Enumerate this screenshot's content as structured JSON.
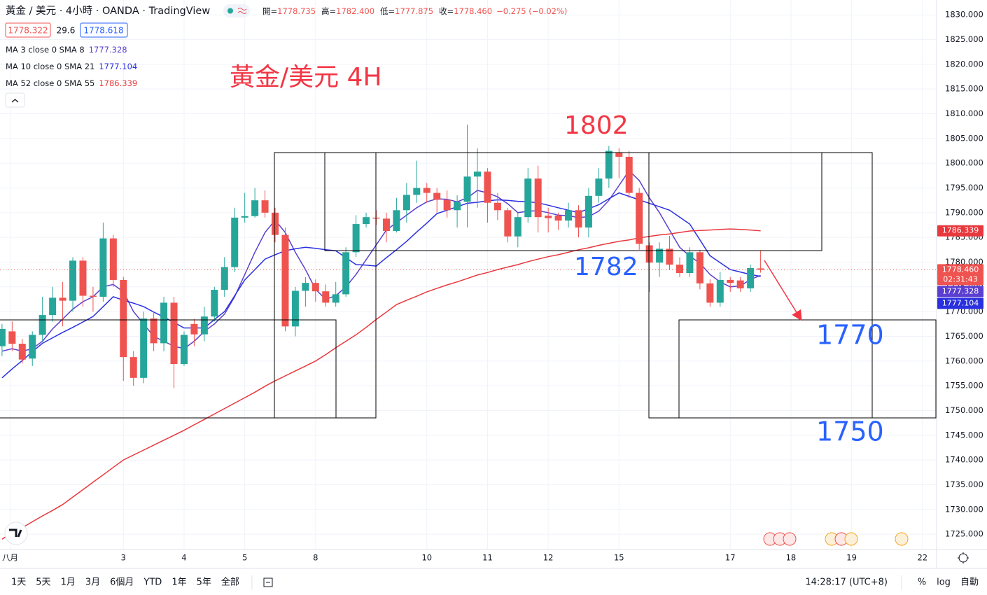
{
  "header": {
    "symbol_line": "黃金 / 美元 · 4小時 · OANDA · TradingView",
    "ohlc": [
      {
        "label": "開=",
        "value": "1778.735"
      },
      {
        "label": "高=",
        "value": "1782.400"
      },
      {
        "label": "低=",
        "value": "1777.875"
      },
      {
        "label": "收=",
        "value": "1778.460"
      }
    ],
    "change": "−0.275 (−0.02%)",
    "bid": "1778.322",
    "spread": "29.6",
    "ask": "1778.618"
  },
  "chart_data": {
    "type": "candlestick",
    "annotations": [
      "黃金/美元 4H",
      "1802",
      "1782",
      "1770",
      "1750"
    ],
    "candles": {
      "open": [
        1763,
        1766,
        1763.5,
        1760.5,
        1765.3,
        1769.3,
        1772.8,
        1772.2,
        1780.3,
        1773.2,
        1773,
        1784.8,
        1776.4,
        1760.8,
        1756.6,
        1768.6,
        1763.6,
        1771.8,
        1759.4,
        1767.5,
        1765.4,
        1769,
        1774.4,
        1779,
        1789,
        1789.3,
        1792.5,
        1790,
        1785.5,
        1767,
        1774.2,
        1775.8,
        1774.1,
        1771.8,
        1773.5,
        1782,
        1787.7,
        1789,
        1788.8,
        1786.3,
        1790.5,
        1793.6,
        1795,
        1794,
        1792.6,
        1790.5,
        1792.2,
        1797.3,
        1798.3,
        1792,
        1790.5,
        1785.2,
        1789.1,
        1796.9,
        1789.4,
        1789.4,
        1788.4,
        1790.5,
        1787,
        1793.4,
        1796.9,
        1802.2,
        1801.3,
        1794,
        1783.4,
        1779.9,
        1782.7,
        1779.5,
        1777.8,
        1782,
        1775.7,
        1771.8,
        1776.4,
        1776.3,
        1774.7,
        1778.735
      ],
      "high": [
        1767.5,
        1768,
        1764.5,
        1766,
        1773,
        1775,
        1776,
        1781,
        1781,
        1775,
        1788,
        1785.5,
        1777,
        1762,
        1770,
        1770,
        1773,
        1773,
        1766,
        1768.5,
        1771,
        1775,
        1781,
        1791,
        1794,
        1795,
        1794.5,
        1791,
        1787,
        1775,
        1777,
        1776.5,
        1775.5,
        1776,
        1783,
        1789.5,
        1790,
        1790.5,
        1790,
        1793,
        1796,
        1800.5,
        1796,
        1795,
        1794.5,
        1793.5,
        1807.8,
        1803,
        1799,
        1794,
        1791,
        1790,
        1799,
        1799.5,
        1791,
        1790,
        1792,
        1791.5,
        1795,
        1799,
        1803.5,
        1803,
        1802.5,
        1795,
        1784,
        1784,
        1785.3,
        1781,
        1783,
        1782.5,
        1776.5,
        1778,
        1777,
        1777,
        1779.5,
        1782.4
      ],
      "low": [
        1761,
        1762,
        1759.5,
        1759,
        1764,
        1768,
        1767,
        1770,
        1771,
        1770,
        1772,
        1775,
        1756,
        1755,
        1755.5,
        1762,
        1762,
        1754.5,
        1759,
        1763,
        1764,
        1768,
        1773,
        1778,
        1788,
        1789,
        1789,
        1784,
        1766,
        1765,
        1771,
        1772,
        1771,
        1771,
        1773,
        1781,
        1787,
        1787.5,
        1784,
        1786,
        1788,
        1792,
        1792,
        1790,
        1789,
        1787,
        1787,
        1791,
        1788,
        1788.5,
        1784,
        1783,
        1788,
        1786,
        1786,
        1786.5,
        1787,
        1785,
        1785,
        1792,
        1795,
        1797,
        1793,
        1782.5,
        1774,
        1777,
        1778.5,
        1777,
        1777,
        1774.5,
        1771,
        1771,
        1774,
        1774,
        1774,
        1777.875
      ],
      "close": [
        1766.5,
        1763.5,
        1760.3,
        1765.3,
        1769.3,
        1772.8,
        1772.2,
        1780.3,
        1773.2,
        1773,
        1784.8,
        1776.4,
        1760.8,
        1756.6,
        1768.6,
        1763.6,
        1771.8,
        1759.4,
        1765.3,
        1765.4,
        1769,
        1774.4,
        1779,
        1789,
        1789.3,
        1792.5,
        1790,
        1785.5,
        1767,
        1774.2,
        1775.8,
        1774.1,
        1771.8,
        1773.5,
        1782,
        1787.7,
        1789.1,
        1788.8,
        1786.3,
        1790.5,
        1793.6,
        1795,
        1794,
        1792.6,
        1790.5,
        1792.2,
        1797.3,
        1798.3,
        1792,
        1790.5,
        1785.2,
        1789.1,
        1796.9,
        1789.1,
        1788.9,
        1788.4,
        1790.5,
        1787,
        1793.4,
        1796.9,
        1802.5,
        1801.3,
        1794,
        1783.7,
        1779.9,
        1782.7,
        1779.5,
        1777.8,
        1782,
        1775.7,
        1771.8,
        1776.4,
        1775.8,
        1774.7,
        1778.8,
        1778.46
      ],
      "up_color": "#26a69a",
      "down_color": "#ef5350",
      "last_label": "1778.460",
      "countdown": "02:31:43"
    },
    "ma_lines": [
      {
        "name": "MA 3 close 0 SMA 8",
        "value_label": "1777.328",
        "color": "#5b3fd0",
        "values": [
          1762,
          1762.5,
          1762,
          1762.5,
          1764,
          1766.5,
          1768.5,
          1770.5,
          1772,
          1773,
          1775,
          1775.5,
          1774,
          1770,
          1767.5,
          1765,
          1764,
          1763,
          1762.5,
          1764,
          1766,
          1767.5,
          1769.5,
          1773,
          1777.5,
          1782,
          1786,
          1788.5,
          1786,
          1782,
          1778.5,
          1774.5,
          1772.5,
          1773.2,
          1775,
          1777.5,
          1780.5,
          1783.5,
          1786.5,
          1788,
          1789.5,
          1791,
          1792.2,
          1792.8,
          1792.7,
          1792.2,
          1793,
          1794.5,
          1794,
          1793.2,
          1791.8,
          1790,
          1790.3,
          1790.4,
          1790,
          1789.5,
          1789.4,
          1789,
          1789.2,
          1790.3,
          1792.5,
          1795.5,
          1798.5,
          1796.5,
          1793,
          1790,
          1786.5,
          1783,
          1781.2,
          1779.8,
          1777.5,
          1776,
          1775,
          1775.2,
          1776.5,
          1777.328
        ]
      },
      {
        "name": "MA 10 close 0 SMA 21",
        "value_label": "1777.104",
        "color": "#2a30e0",
        "values": [
          1756.6,
          1758.4,
          1760.1,
          1761.9,
          1763.6,
          1764.7,
          1765.8,
          1766.8,
          1767.9,
          1769.0,
          1771.0,
          1773.0,
          1772.3,
          1771.7,
          1771.0,
          1769.9,
          1768.9,
          1767.8,
          1766.7,
          1766.7,
          1766.7,
          1768.4,
          1770.0,
          1773.2,
          1776.4,
          1778.5,
          1780.6,
          1781.5,
          1782.3,
          1782.7,
          1783.0,
          1782.8,
          1782.5,
          1782.3,
          1780.9,
          1779.5,
          1779.4,
          1779.2,
          1780.9,
          1782.5,
          1784.2,
          1786.1,
          1787.9,
          1789.8,
          1790.5,
          1791.2,
          1791.9,
          1792.1,
          1792.4,
          1792.6,
          1792.5,
          1792.3,
          1792.2,
          1792.0,
          1791.5,
          1791.0,
          1790.5,
          1790.0,
          1790.8,
          1791.6,
          1792.8,
          1794.0,
          1793.3,
          1792.6,
          1791.9,
          1791.2,
          1790.5,
          1789.1,
          1787.7,
          1784.5,
          1781.3,
          1779.9,
          1778.5,
          1778.0,
          1777.5,
          1777.104
        ]
      },
      {
        "name": "MA 52 close 0 SMA 55",
        "value_label": "1786.339",
        "color": "#e8383d",
        "values": [
          1724.0,
          1725.2,
          1726.3,
          1727.5,
          1728.7,
          1729.8,
          1731.0,
          1732.5,
          1734.0,
          1735.5,
          1737.0,
          1738.5,
          1740.0,
          1741.0,
          1742.0,
          1743.0,
          1744.0,
          1745.0,
          1746.0,
          1747.1,
          1748.2,
          1749.3,
          1750.4,
          1751.5,
          1752.6,
          1753.7,
          1754.9,
          1756.0,
          1757.0,
          1758.0,
          1759.0,
          1760.0,
          1761.3,
          1762.7,
          1764.0,
          1765.3,
          1766.8,
          1768.4,
          1769.9,
          1771.4,
          1772.3,
          1773.1,
          1774.0,
          1774.7,
          1775.4,
          1776.0,
          1776.7,
          1777.4,
          1777.9,
          1778.5,
          1779.0,
          1779.5,
          1780.1,
          1780.6,
          1781.1,
          1781.5,
          1782.0,
          1782.5,
          1782.9,
          1783.4,
          1783.8,
          1784.2,
          1784.5,
          1784.9,
          1785.2,
          1785.5,
          1785.7,
          1786.0,
          1786.3,
          1786.4,
          1786.5,
          1786.6,
          1786.7,
          1786.6,
          1786.5,
          1786.339
        ]
      }
    ],
    "xlim": [
      -0.2,
      92.4
    ],
    "xticks": [
      {
        "value": 0.8,
        "label": "八月"
      },
      {
        "value": 12,
        "label": "3"
      },
      {
        "value": 18,
        "label": "4"
      },
      {
        "value": 24,
        "label": "5"
      },
      {
        "value": 31,
        "label": "8"
      },
      {
        "value": 42,
        "label": "10"
      },
      {
        "value": 48,
        "label": "11"
      },
      {
        "value": 54,
        "label": "12"
      },
      {
        "value": 61,
        "label": "15"
      },
      {
        "value": 72,
        "label": "17"
      },
      {
        "value": 78,
        "label": "18"
      },
      {
        "value": 84,
        "label": "19"
      },
      {
        "value": 91,
        "label": "22"
      }
    ],
    "ylim": [
      1721.9,
      1833
    ],
    "yticks": [
      {
        "value": 1725,
        "label": "1725.000"
      },
      {
        "value": 1730,
        "label": "1730.000"
      },
      {
        "value": 1735,
        "label": "1735.000"
      },
      {
        "value": 1740,
        "label": "1740.000"
      },
      {
        "value": 1745,
        "label": "1745.000"
      },
      {
        "value": 1750,
        "label": "1750.000"
      },
      {
        "value": 1755,
        "label": "1755.000"
      },
      {
        "value": 1760,
        "label": "1760.000"
      },
      {
        "value": 1765,
        "label": "1765.000"
      },
      {
        "value": 1770,
        "label": "1770.000"
      },
      {
        "value": 1775,
        "label": "1775.000"
      },
      {
        "value": 1780,
        "label": "1780.000"
      },
      {
        "value": 1785,
        "label": "1785.000"
      },
      {
        "value": 1790,
        "label": "1790.000"
      },
      {
        "value": 1795,
        "label": "1795.000"
      },
      {
        "value": 1800,
        "label": "1800.000"
      },
      {
        "value": 1805,
        "label": "1805.000"
      },
      {
        "value": 1810,
        "label": "1810.000"
      },
      {
        "value": 1815,
        "label": "1815.000"
      },
      {
        "value": 1820,
        "label": "1820.000"
      },
      {
        "value": 1825,
        "label": "1825.000"
      },
      {
        "value": 1830,
        "label": "1830.000"
      }
    ],
    "grid": true
  },
  "toolbar": {
    "ranges": [
      "1天",
      "5天",
      "1月",
      "3月",
      "6個月",
      "YTD",
      "1年",
      "5年",
      "全部"
    ],
    "clock": "14:28:17 (UTC+8)",
    "percent": "%",
    "log": "log",
    "auto": "自動"
  }
}
